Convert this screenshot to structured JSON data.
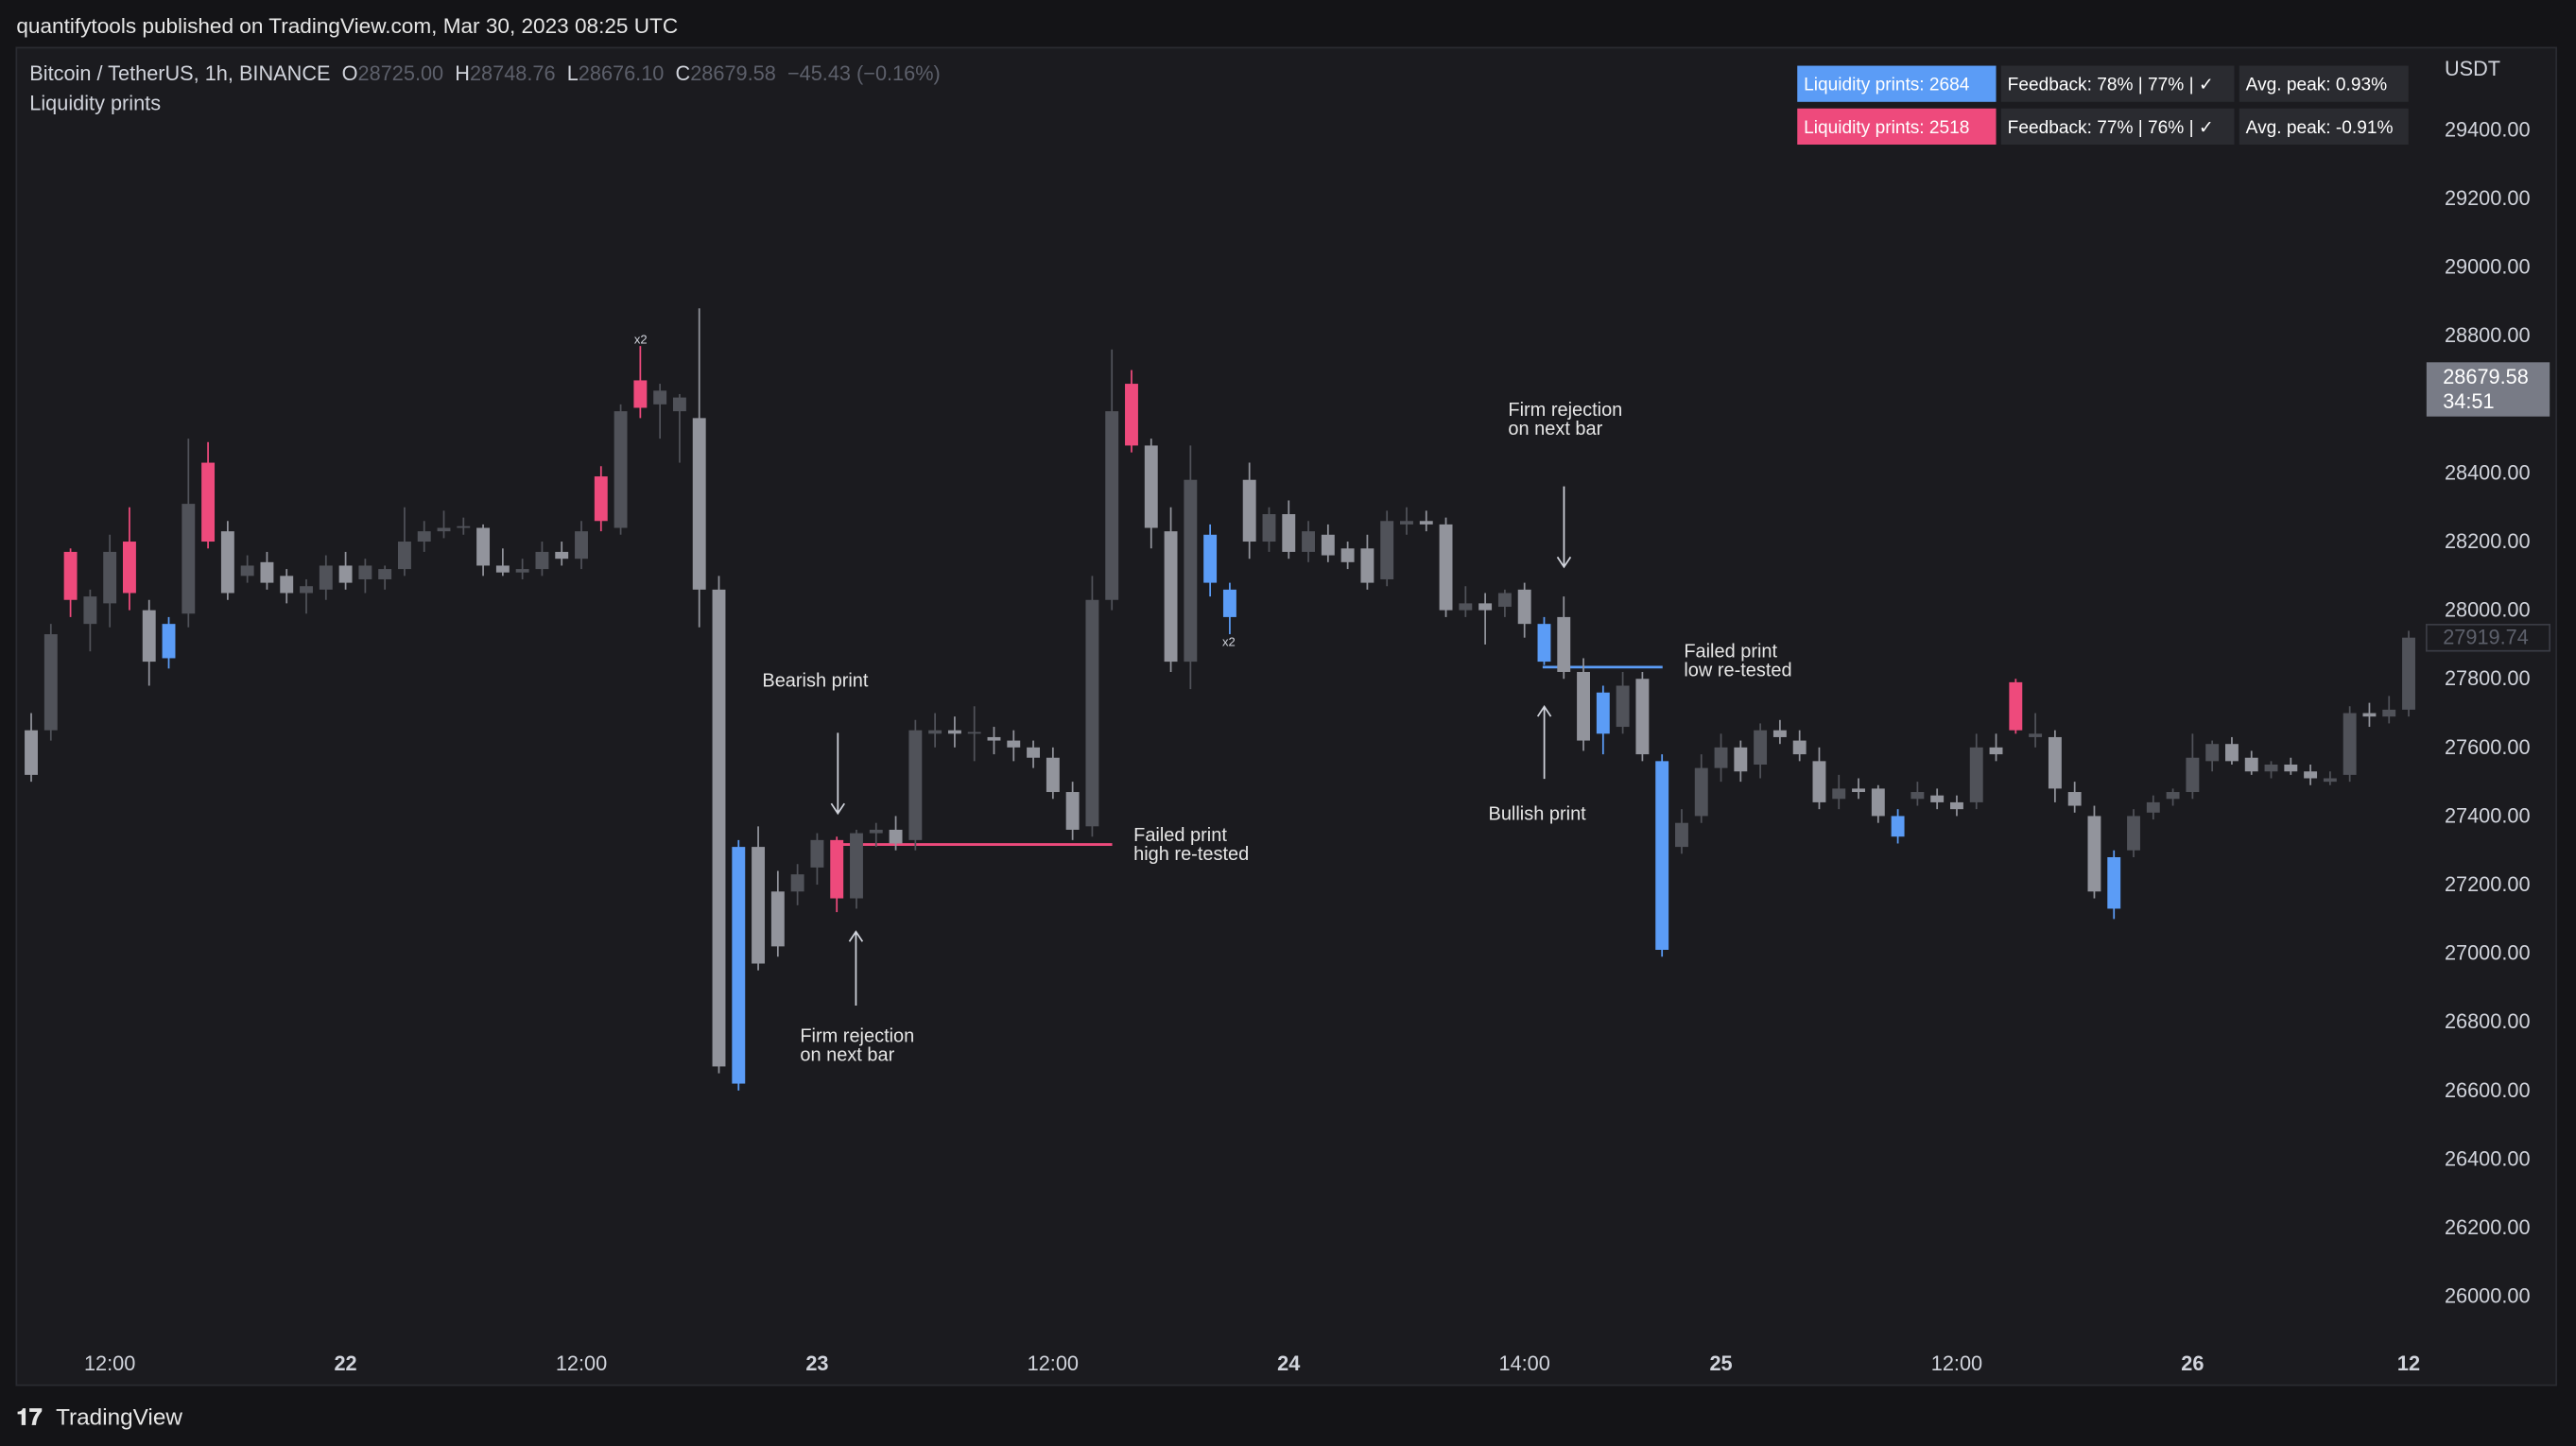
{
  "header": "quantifytools published on TradingView.com, Mar 30, 2023 08:25 UTC",
  "footer": "TradingView",
  "chart_data": {
    "type": "candlestick",
    "title": "Bitcoin / TetherUS, 1h, BINANCE",
    "ohlc_header": [
      {
        "key": "O",
        "value": "28725.00"
      },
      {
        "key": "H",
        "value": "28748.76"
      },
      {
        "key": "L",
        "value": "28676.10"
      },
      {
        "key": "C",
        "value": "28679.58"
      }
    ],
    "change": "−45.43 (−0.16%)",
    "indicator": "Liquidity prints",
    "y_unit": "USDT",
    "categories": [
      null,
      null,
      null,
      null,
      "12:00",
      null,
      null,
      null,
      null,
      null,
      null,
      null,
      null,
      null,
      null,
      null,
      "22",
      null,
      null,
      null,
      null,
      null,
      null,
      null,
      null,
      null,
      null,
      null,
      "12:00",
      null,
      null,
      null,
      null,
      null,
      null,
      null,
      null,
      null,
      null,
      null,
      "23",
      null,
      null,
      null,
      null,
      null,
      null,
      null,
      null,
      null,
      null,
      null,
      "12:00",
      null,
      null,
      null,
      null,
      null,
      null,
      null,
      null,
      null,
      null,
      null,
      "24",
      null,
      null,
      null,
      null,
      null,
      null,
      null,
      null,
      null,
      null,
      null,
      "14:00",
      null,
      null,
      null,
      null,
      null,
      null,
      null,
      null,
      null,
      "25",
      null,
      null,
      null,
      null,
      null,
      null,
      null,
      null,
      null,
      null,
      null,
      "12:00",
      null,
      null,
      null,
      null,
      null,
      null,
      null,
      null,
      null,
      null,
      null,
      "26",
      null,
      null,
      null,
      null,
      null,
      null,
      null,
      null,
      null,
      null,
      "12"
    ],
    "candles": [
      [
        27650,
        27700,
        27500,
        27520
      ],
      [
        27650,
        27960,
        27620,
        27930
      ],
      [
        28170,
        28180,
        27980,
        28030
      ],
      [
        27960,
        28060,
        27880,
        28040
      ],
      [
        28020,
        28220,
        27950,
        28170
      ],
      [
        28200,
        28300,
        28000,
        28050
      ],
      [
        28000,
        28030,
        27780,
        27850
      ],
      [
        27960,
        27980,
        27830,
        27860
      ],
      [
        27990,
        28500,
        27950,
        28310
      ],
      [
        28430,
        28490,
        28180,
        28200
      ],
      [
        28230,
        28260,
        28030,
        28050
      ],
      [
        28100,
        28160,
        28080,
        28130
      ],
      [
        28140,
        28170,
        28060,
        28080
      ],
      [
        28100,
        28120,
        28020,
        28050
      ],
      [
        28050,
        28090,
        27990,
        28070
      ],
      [
        28060,
        28160,
        28030,
        28130
      ],
      [
        28130,
        28170,
        28060,
        28080
      ],
      [
        28090,
        28150,
        28050,
        28130
      ],
      [
        28090,
        28130,
        28060,
        28120
      ],
      [
        28120,
        28300,
        28100,
        28200
      ],
      [
        28200,
        28260,
        28170,
        28230
      ],
      [
        28230,
        28290,
        28210,
        28240
      ],
      [
        28240,
        28270,
        28220,
        28245
      ],
      [
        28240,
        28250,
        28100,
        28130
      ],
      [
        28130,
        28180,
        28100,
        28110
      ],
      [
        28110,
        28150,
        28090,
        28120
      ],
      [
        28120,
        28200,
        28100,
        28170
      ],
      [
        28170,
        28200,
        28130,
        28150
      ],
      [
        28150,
        28260,
        28120,
        28230
      ],
      [
        28390,
        28420,
        28230,
        28260
      ],
      [
        28240,
        28600,
        28220,
        28580
      ],
      [
        28670,
        28770,
        28560,
        28590
      ],
      [
        28600,
        28660,
        28500,
        28640
      ],
      [
        28580,
        28630,
        28430,
        28620
      ],
      [
        28560,
        28880,
        27950,
        28060
      ],
      [
        28060,
        28100,
        26650,
        26670
      ],
      [
        26620,
        27330,
        26600,
        27310
      ],
      [
        27310,
        27370,
        26950,
        26970
      ],
      [
        27180,
        27240,
        26990,
        27020
      ],
      [
        27180,
        27260,
        27140,
        27230
      ],
      [
        27250,
        27350,
        27200,
        27330
      ],
      [
        27330,
        27340,
        27120,
        27160
      ],
      [
        27160,
        27360,
        27130,
        27350
      ],
      [
        27350,
        27380,
        27310,
        27360
      ],
      [
        27360,
        27400,
        27300,
        27320
      ],
      [
        27330,
        27680,
        27300,
        27650
      ],
      [
        27640,
        27700,
        27600,
        27650
      ],
      [
        27650,
        27690,
        27600,
        27640
      ],
      [
        27640,
        27720,
        27560,
        27645
      ],
      [
        27630,
        27660,
        27580,
        27620
      ],
      [
        27620,
        27650,
        27560,
        27600
      ],
      [
        27600,
        27620,
        27540,
        27570
      ],
      [
        27570,
        27600,
        27450,
        27470
      ],
      [
        27470,
        27500,
        27330,
        27360
      ],
      [
        27370,
        28100,
        27340,
        28030
      ],
      [
        28030,
        28760,
        28000,
        28580
      ],
      [
        28660,
        28700,
        28460,
        28480
      ],
      [
        28480,
        28500,
        28180,
        28240
      ],
      [
        28230,
        28300,
        27820,
        27850
      ],
      [
        27850,
        28480,
        27770,
        28380
      ],
      [
        28220,
        28250,
        28040,
        28080
      ],
      [
        28060,
        28080,
        27930,
        27980
      ],
      [
        28380,
        28430,
        28150,
        28200
      ],
      [
        28200,
        28300,
        28170,
        28280
      ],
      [
        28280,
        28320,
        28150,
        28170
      ],
      [
        28170,
        28260,
        28140,
        28230
      ],
      [
        28220,
        28250,
        28140,
        28160
      ],
      [
        28180,
        28200,
        28120,
        28140
      ],
      [
        28180,
        28220,
        28060,
        28080
      ],
      [
        28090,
        28290,
        28070,
        28260
      ],
      [
        28250,
        28300,
        28220,
        28260
      ],
      [
        28260,
        28290,
        28230,
        28250
      ],
      [
        28250,
        28270,
        27980,
        28000
      ],
      [
        28000,
        28070,
        27980,
        28020
      ],
      [
        28020,
        28050,
        27900,
        28000
      ],
      [
        28010,
        28060,
        27980,
        28050
      ],
      [
        28060,
        28080,
        27920,
        27960
      ],
      [
        27960,
        27980,
        27840,
        27850
      ],
      [
        27980,
        28040,
        27800,
        27820
      ],
      [
        27820,
        27860,
        27590,
        27620
      ],
      [
        27760,
        27780,
        27580,
        27640
      ],
      [
        27660,
        27820,
        27640,
        27780
      ],
      [
        27800,
        27820,
        27560,
        27580
      ],
      [
        27560,
        27580,
        26990,
        27010
      ],
      [
        27310,
        27420,
        27290,
        27380
      ],
      [
        27400,
        27580,
        27380,
        27540
      ],
      [
        27540,
        27640,
        27500,
        27600
      ],
      [
        27600,
        27620,
        27500,
        27530
      ],
      [
        27550,
        27670,
        27510,
        27650
      ],
      [
        27650,
        27680,
        27610,
        27630
      ],
      [
        27620,
        27650,
        27560,
        27580
      ],
      [
        27560,
        27600,
        27420,
        27440
      ],
      [
        27450,
        27520,
        27420,
        27480
      ],
      [
        27480,
        27510,
        27450,
        27470
      ],
      [
        27480,
        27490,
        27380,
        27400
      ],
      [
        27400,
        27420,
        27320,
        27340
      ],
      [
        27450,
        27500,
        27430,
        27470
      ],
      [
        27460,
        27480,
        27420,
        27440
      ],
      [
        27440,
        27460,
        27400,
        27420
      ],
      [
        27440,
        27640,
        27420,
        27600
      ],
      [
        27600,
        27640,
        27560,
        27580
      ],
      [
        27790,
        27800,
        27640,
        27650
      ],
      [
        27630,
        27700,
        27600,
        27640
      ],
      [
        27630,
        27650,
        27440,
        27480
      ],
      [
        27470,
        27500,
        27410,
        27430
      ],
      [
        27400,
        27430,
        27160,
        27180
      ],
      [
        27280,
        27300,
        27100,
        27130
      ],
      [
        27300,
        27420,
        27280,
        27400
      ],
      [
        27410,
        27460,
        27390,
        27440
      ],
      [
        27450,
        27480,
        27430,
        27470
      ],
      [
        27470,
        27640,
        27450,
        27570
      ],
      [
        27560,
        27620,
        27530,
        27610
      ],
      [
        27610,
        27630,
        27550,
        27560
      ],
      [
        27570,
        27590,
        27520,
        27530
      ],
      [
        27530,
        27560,
        27510,
        27550
      ],
      [
        27550,
        27570,
        27520,
        27530
      ],
      [
        27530,
        27550,
        27490,
        27510
      ],
      [
        27500,
        27530,
        27490,
        27510
      ],
      [
        27520,
        27720,
        27500,
        27700
      ],
      [
        27700,
        27730,
        27660,
        27690
      ],
      [
        27690,
        27750,
        27670,
        27710
      ],
      [
        27710,
        27940,
        27690,
        27920
      ]
    ],
    "up_color": "#505259",
    "down_color": "#92949c",
    "print_colors": {
      "bullish": "#5b9cf6",
      "bearish": "#ee4a7c"
    },
    "bullish_prints": [
      7,
      36,
      60,
      61,
      77,
      80,
      83,
      95,
      106
    ],
    "bearish_prints": [
      2,
      5,
      9,
      29,
      31,
      41,
      56,
      101
    ],
    "ylim": [
      25875,
      29635
    ],
    "yticks": [
      {
        "value": 26000,
        "label": "26000.00"
      },
      {
        "value": 26200,
        "label": "26200.00"
      },
      {
        "value": 26400,
        "label": "26400.00"
      },
      {
        "value": 26600,
        "label": "26600.00"
      },
      {
        "value": 26800,
        "label": "26800.00"
      },
      {
        "value": 27000,
        "label": "27000.00"
      },
      {
        "value": 27200,
        "label": "27200.00"
      },
      {
        "value": 27400,
        "label": "27400.00"
      },
      {
        "value": 27600,
        "label": "27600.00"
      },
      {
        "value": 27800,
        "label": "27800.00"
      },
      {
        "value": 28000,
        "label": "28000.00"
      },
      {
        "value": 28200,
        "label": "28200.00"
      },
      {
        "value": 28400,
        "label": "28400.00"
      },
      {
        "value": 28600,
        "label": "28600.00"
      },
      {
        "value": 28800,
        "label": "28800.00"
      },
      {
        "value": 29000,
        "label": "29000.00"
      },
      {
        "value": 29200,
        "label": "29200.00"
      },
      {
        "value": 29400,
        "label": "29400.00"
      }
    ],
    "last_price": 28679.58,
    "countdown": "34:51",
    "marker_price": 27919.74,
    "stats_table": [
      [
        "Liquidity prints: 2684",
        "Feedback: 78% | 77% | ✓",
        "Avg. peak: 0.93%"
      ],
      [
        "Liquidity prints: 2518",
        "Feedback: 77% | 76% | ✓",
        "Avg. peak: -0.91%"
      ]
    ],
    "levels": [
      {
        "value": 27317,
        "color": "#ee4a7c"
      },
      {
        "value": 27834,
        "color": "#5b9cf6"
      }
    ],
    "print_counts": [
      "x2",
      "x2"
    ],
    "annotations": [
      [
        "Bearish print"
      ],
      [
        "Failed print",
        "high re-tested"
      ],
      [
        "Firm rejection",
        "on next bar"
      ],
      [
        "Firm rejection",
        "on next bar"
      ],
      [
        "Failed print",
        "low re-tested"
      ],
      [
        "Bullish print"
      ]
    ]
  }
}
